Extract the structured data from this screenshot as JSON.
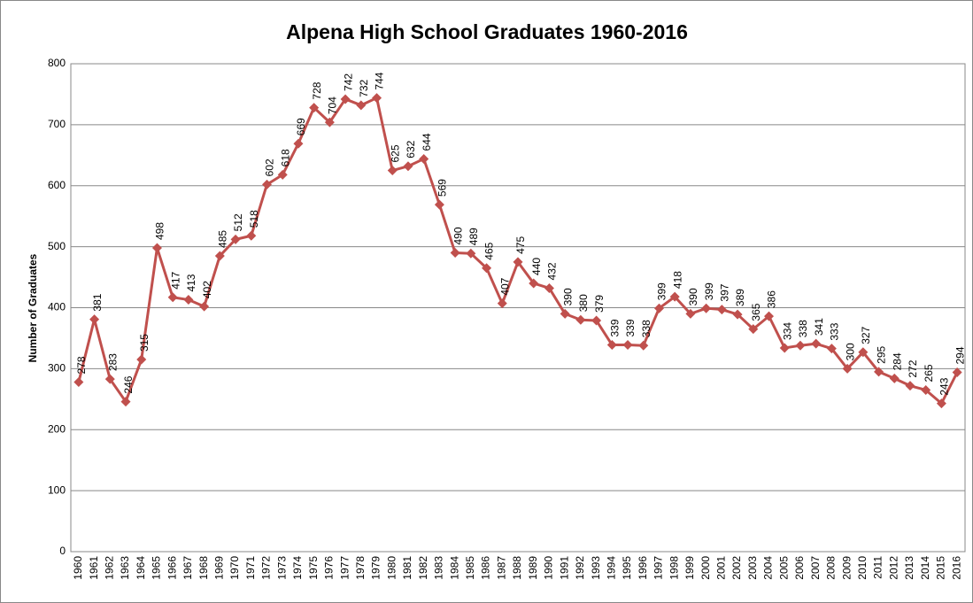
{
  "chart_data": {
    "type": "line",
    "title": "Alpena High School Graduates 1960-2016",
    "y_label": "Number of Graduates",
    "categories": [
      "1960",
      "1961",
      "1962",
      "1963",
      "1964",
      "1965",
      "1966",
      "1967",
      "1968",
      "1969",
      "1970",
      "1971",
      "1972",
      "1973",
      "1974",
      "1975",
      "1976",
      "1977",
      "1978",
      "1979",
      "1980",
      "1981",
      "1982",
      "1983",
      "1984",
      "1985",
      "1986",
      "1987",
      "1988",
      "1989",
      "1990",
      "1991",
      "1992",
      "1993",
      "1994",
      "1995",
      "1996",
      "1997",
      "1998",
      "1999",
      "2000",
      "2001",
      "2002",
      "2003",
      "2004",
      "2005",
      "2006",
      "2007",
      "2008",
      "2009",
      "2010",
      "2011",
      "2012",
      "2013",
      "2014",
      "2015",
      "2016"
    ],
    "values": [
      278,
      381,
      283,
      246,
      315,
      498,
      417,
      413,
      402,
      485,
      512,
      518,
      602,
      618,
      669,
      728,
      704,
      742,
      732,
      744,
      625,
      632,
      644,
      569,
      490,
      489,
      465,
      407,
      475,
      440,
      432,
      390,
      380,
      379,
      339,
      339,
      338,
      399,
      418,
      390,
      399,
      397,
      389,
      365,
      386,
      334,
      338,
      341,
      333,
      300,
      327,
      295,
      284,
      272,
      265,
      243,
      294
    ],
    "color": "#c0504d",
    "ylim": [
      0,
      800
    ],
    "yticks": [
      0,
      100,
      200,
      300,
      400,
      500,
      600,
      700,
      800
    ],
    "grid": true
  }
}
